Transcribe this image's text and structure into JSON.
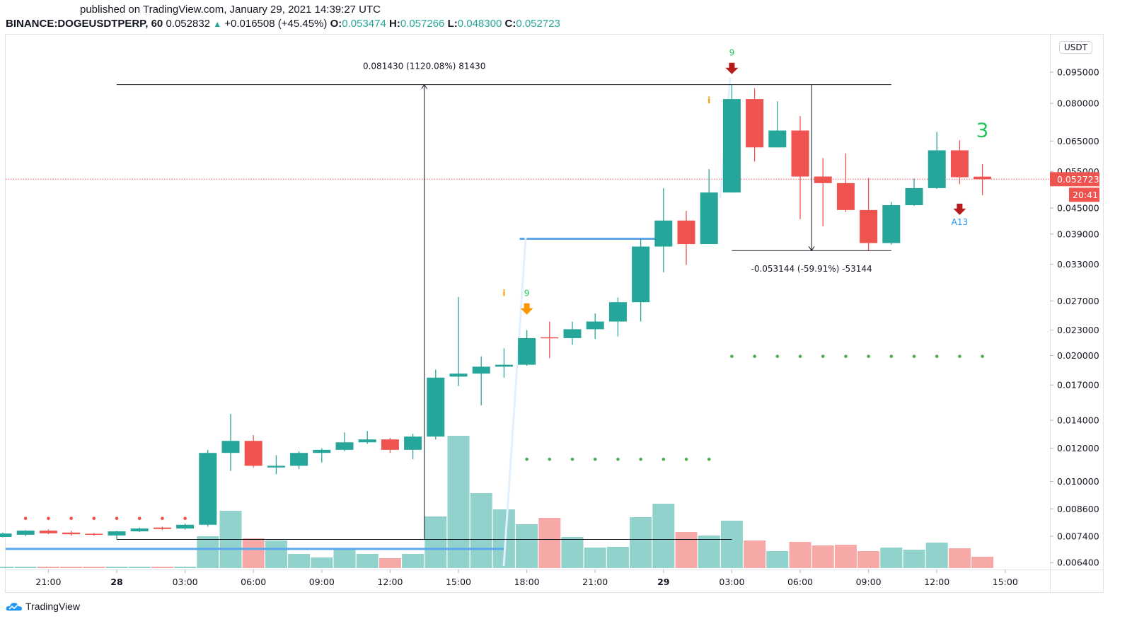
{
  "header": {
    "published": "published on TradingView.com, January 29, 2021 14:39:27 UTC",
    "symbol": "BINANCE:DOGEUSDTPERP, 60",
    "last": "0.052832",
    "change": "+0.016508 (+45.45%)",
    "o_label": "O:",
    "o": "0.053474",
    "h_label": "H:",
    "h": "0.057266",
    "l_label": "L:",
    "l": "0.048300",
    "c_label": "C:",
    "c": "0.052723"
  },
  "currency_button": "USDT",
  "brand": "TradingView",
  "colors": {
    "up": "#26a69a",
    "down": "#ef5350",
    "accent_blue": "#5aa7ee",
    "price_line": "#ef5350"
  },
  "chart_data": {
    "type": "candlestick",
    "interval": "60",
    "y_scale": "log",
    "ylim": [
      0.0062,
      0.105
    ],
    "grid": false,
    "y_ticks": [
      "0.095000",
      "0.080000",
      "0.065000",
      "0.055000",
      "0.045000",
      "0.039000",
      "0.033000",
      "0.027000",
      "0.023000",
      "0.020000",
      "0.017000",
      "0.014000",
      "0.012000",
      "0.010000",
      "0.008600",
      "0.007400",
      "0.006400"
    ],
    "x_ticks": [
      {
        "t": "2021-01-27 21:00",
        "label": "21:00"
      },
      {
        "t": "2021-01-28 00:00",
        "label": "28",
        "bold": true
      },
      {
        "t": "2021-01-28 03:00",
        "label": "03:00"
      },
      {
        "t": "2021-01-28 06:00",
        "label": "06:00"
      },
      {
        "t": "2021-01-28 09:00",
        "label": "09:00"
      },
      {
        "t": "2021-01-28 12:00",
        "label": "12:00"
      },
      {
        "t": "2021-01-28 15:00",
        "label": "15:00"
      },
      {
        "t": "2021-01-28 18:00",
        "label": "18:00"
      },
      {
        "t": "2021-01-28 21:00",
        "label": "21:00"
      },
      {
        "t": "2021-01-29 00:00",
        "label": "29",
        "bold": true
      },
      {
        "t": "2021-01-29 03:00",
        "label": "03:00"
      },
      {
        "t": "2021-01-29 06:00",
        "label": "06:00"
      },
      {
        "t": "2021-01-29 09:00",
        "label": "09:00"
      },
      {
        "t": "2021-01-29 12:00",
        "label": "12:00"
      },
      {
        "t": "2021-01-29 15:00",
        "label": "15:00"
      }
    ],
    "candles": [
      {
        "t": "2021-01-27 19:00",
        "o": 0.00737,
        "h": 0.00755,
        "l": 0.00735,
        "c": 0.00751,
        "v": 2
      },
      {
        "t": "2021-01-27 20:00",
        "o": 0.00746,
        "h": 0.00765,
        "l": 0.0074,
        "c": 0.00763,
        "v": 2
      },
      {
        "t": "2021-01-27 21:00",
        "o": 0.00763,
        "h": 0.00768,
        "l": 0.00748,
        "c": 0.00752,
        "v": 2
      },
      {
        "t": "2021-01-27 22:00",
        "o": 0.00755,
        "h": 0.00762,
        "l": 0.00742,
        "c": 0.00748,
        "v": 2
      },
      {
        "t": "2021-01-27 23:00",
        "o": 0.0075,
        "h": 0.00753,
        "l": 0.00742,
        "c": 0.00746,
        "v": 2
      },
      {
        "t": "2021-01-28 00:00",
        "o": 0.00743,
        "h": 0.00762,
        "l": 0.00727,
        "c": 0.0076,
        "v": 2
      },
      {
        "t": "2021-01-28 01:00",
        "o": 0.0076,
        "h": 0.00776,
        "l": 0.00757,
        "c": 0.00772,
        "v": 2
      },
      {
        "t": "2021-01-28 02:00",
        "o": 0.00776,
        "h": 0.0078,
        "l": 0.00766,
        "c": 0.0077,
        "v": 2
      },
      {
        "t": "2021-01-28 03:00",
        "o": 0.00772,
        "h": 0.00793,
        "l": 0.00768,
        "c": 0.00788,
        "v": 2
      },
      {
        "t": "2021-01-28 04:00",
        "o": 0.00788,
        "h": 0.0119,
        "l": 0.0078,
        "c": 0.0117,
        "v": 45
      },
      {
        "t": "2021-01-28 05:00",
        "o": 0.0117,
        "h": 0.0145,
        "l": 0.0106,
        "c": 0.0125,
        "v": 81
      },
      {
        "t": "2021-01-28 06:00",
        "o": 0.0125,
        "h": 0.0129,
        "l": 0.0108,
        "c": 0.0109,
        "v": 42
      },
      {
        "t": "2021-01-28 07:00",
        "o": 0.0108,
        "h": 0.01155,
        "l": 0.0104,
        "c": 0.0109,
        "v": 39
      },
      {
        "t": "2021-01-28 08:00",
        "o": 0.0109,
        "h": 0.0118,
        "l": 0.0107,
        "c": 0.0117,
        "v": 20
      },
      {
        "t": "2021-01-28 09:00",
        "o": 0.0117,
        "h": 0.012,
        "l": 0.0111,
        "c": 0.0119,
        "v": 15
      },
      {
        "t": "2021-01-28 10:00",
        "o": 0.0119,
        "h": 0.0131,
        "l": 0.0118,
        "c": 0.0124,
        "v": 28
      },
      {
        "t": "2021-01-28 11:00",
        "o": 0.0124,
        "h": 0.0132,
        "l": 0.0123,
        "c": 0.0126,
        "v": 20
      },
      {
        "t": "2021-01-28 12:00",
        "o": 0.0126,
        "h": 0.0127,
        "l": 0.0117,
        "c": 0.0119,
        "v": 14
      },
      {
        "t": "2021-01-28 13:00",
        "o": 0.0119,
        "h": 0.013,
        "l": 0.0113,
        "c": 0.0128,
        "v": 20
      },
      {
        "t": "2021-01-28 14:00",
        "o": 0.0128,
        "h": 0.0185,
        "l": 0.0126,
        "c": 0.0177,
        "v": 73
      },
      {
        "t": "2021-01-28 15:00",
        "o": 0.0178,
        "h": 0.0276,
        "l": 0.0169,
        "c": 0.0181,
        "v": 187
      },
      {
        "t": "2021-01-28 16:00",
        "o": 0.0181,
        "h": 0.0199,
        "l": 0.0152,
        "c": 0.0188,
        "v": 106
      },
      {
        "t": "2021-01-28 17:00",
        "o": 0.0188,
        "h": 0.0208,
        "l": 0.0177,
        "c": 0.019,
        "v": 83
      },
      {
        "t": "2021-01-28 18:00",
        "o": 0.019,
        "h": 0.023,
        "l": 0.0189,
        "c": 0.022,
        "v": 62
      },
      {
        "t": "2021-01-28 19:00",
        "o": 0.0221,
        "h": 0.0241,
        "l": 0.0197,
        "c": 0.022,
        "v": 71
      },
      {
        "t": "2021-01-28 20:00",
        "o": 0.022,
        "h": 0.0241,
        "l": 0.0212,
        "c": 0.0231,
        "v": 44
      },
      {
        "t": "2021-01-28 21:00",
        "o": 0.0231,
        "h": 0.0252,
        "l": 0.0219,
        "c": 0.0241,
        "v": 29
      },
      {
        "t": "2021-01-28 22:00",
        "o": 0.0241,
        "h": 0.0275,
        "l": 0.0222,
        "c": 0.0268,
        "v": 30
      },
      {
        "t": "2021-01-28 23:00",
        "o": 0.0268,
        "h": 0.038,
        "l": 0.0241,
        "c": 0.0364,
        "v": 72
      },
      {
        "t": "2021-01-29 00:00",
        "o": 0.0364,
        "h": 0.0502,
        "l": 0.0316,
        "c": 0.042,
        "v": 91
      },
      {
        "t": "2021-01-29 01:00",
        "o": 0.042,
        "h": 0.0443,
        "l": 0.0329,
        "c": 0.0369,
        "v": 51
      },
      {
        "t": "2021-01-29 02:00",
        "o": 0.0369,
        "h": 0.0557,
        "l": 0.0369,
        "c": 0.049,
        "v": 46
      },
      {
        "t": "2021-01-29 03:00",
        "o": 0.049,
        "h": 0.0887,
        "l": 0.049,
        "c": 0.0819,
        "v": 67
      },
      {
        "t": "2021-01-29 04:00",
        "o": 0.0819,
        "h": 0.0869,
        "l": 0.0581,
        "c": 0.0628,
        "v": 39
      },
      {
        "t": "2021-01-29 05:00",
        "o": 0.0628,
        "h": 0.0809,
        "l": 0.0628,
        "c": 0.0689,
        "v": 24
      },
      {
        "t": "2021-01-29 06:00",
        "o": 0.0689,
        "h": 0.0746,
        "l": 0.0423,
        "c": 0.0535,
        "v": 37
      },
      {
        "t": "2021-01-29 07:00",
        "o": 0.0535,
        "h": 0.0592,
        "l": 0.0407,
        "c": 0.0516,
        "v": 32
      },
      {
        "t": "2021-01-29 08:00",
        "o": 0.0516,
        "h": 0.0608,
        "l": 0.044,
        "c": 0.0445,
        "v": 33
      },
      {
        "t": "2021-01-29 09:00",
        "o": 0.0445,
        "h": 0.0531,
        "l": 0.0356,
        "c": 0.0371,
        "v": 24
      },
      {
        "t": "2021-01-29 10:00",
        "o": 0.0371,
        "h": 0.0465,
        "l": 0.0368,
        "c": 0.0457,
        "v": 29
      },
      {
        "t": "2021-01-29 11:00",
        "o": 0.0457,
        "h": 0.0529,
        "l": 0.0455,
        "c": 0.0502,
        "v": 26
      },
      {
        "t": "2021-01-29 12:00",
        "o": 0.0502,
        "h": 0.0684,
        "l": 0.05,
        "c": 0.0618,
        "v": 36
      },
      {
        "t": "2021-01-29 13:00",
        "o": 0.0618,
        "h": 0.0653,
        "l": 0.0513,
        "c": 0.0533,
        "v": 28
      },
      {
        "t": "2021-01-29 14:00",
        "o": 0.053474,
        "h": 0.057266,
        "l": 0.0483,
        "c": 0.052723,
        "v": 16
      }
    ],
    "last_price_label": "0.052723",
    "countdown": "20:41",
    "dot_series": [
      {
        "color": "#ef5350",
        "price": 0.00816,
        "from": "2021-01-27 20:00",
        "to": "2021-01-28 03:00"
      },
      {
        "color": "#4caf50",
        "price": 0.0113,
        "from": "2021-01-28 18:00",
        "to": "2021-01-29 02:00"
      },
      {
        "color": "#4caf50",
        "price": 0.0199,
        "from": "2021-01-29 03:00",
        "to": "2021-01-29 14:00"
      }
    ],
    "horizontal_lines": [
      {
        "color": "#5aa7ee",
        "price": 0.0069,
        "from": "2021-01-27 19:00",
        "to": "2021-01-28 17:00"
      },
      {
        "color": "#5aa7ee",
        "price": 0.038,
        "from": "2021-01-28 18:00",
        "to": "2021-01-28 23:40"
      }
    ],
    "measurements": [
      {
        "label": "0.081430 (1120.08%) 81430",
        "from_price": 0.00727,
        "to_price": 0.0887,
        "at": "2021-01-28 13:30",
        "x_from": "2021-01-28 00:00",
        "x_to": "2021-01-29 10:00",
        "top_to": "2021-01-29 10:00",
        "bottom_to": "2021-01-29 03:00"
      },
      {
        "label": "-0.053144 (-59.91%) -53144",
        "from_price": 0.0887,
        "to_price": 0.0356,
        "at": "2021-01-29 06:30",
        "x_from": "2021-01-29 03:00",
        "x_to": "2021-01-29 10:00"
      }
    ],
    "annotations": [
      {
        "text": "9",
        "color": "#22c55e",
        "t": "2021-01-29 03:00",
        "price": 0.104,
        "arrow": "down",
        "arrow_color": "#b71c1c"
      },
      {
        "text": "i",
        "color": "#ff9800",
        "t": "2021-01-29 02:00",
        "price": 0.08
      },
      {
        "text": "9",
        "color": "#22c55e",
        "t": "2021-01-28 18:00",
        "price": 0.0277,
        "arrow": "down",
        "arrow_color": "#ff9800"
      },
      {
        "text": "i",
        "color": "#ff9800",
        "t": "2021-01-28 17:00",
        "price": 0.0277
      },
      {
        "text": "3",
        "color": "#22c55e",
        "t": "2021-01-29 14:00",
        "price": 0.0665,
        "big": true
      },
      {
        "text": "A13",
        "color": "#2196f3",
        "t": "2021-01-29 13:00",
        "price": 0.041,
        "arrow": "down",
        "arrow_color": "#b71c1c",
        "arrow_above": true
      }
    ]
  }
}
